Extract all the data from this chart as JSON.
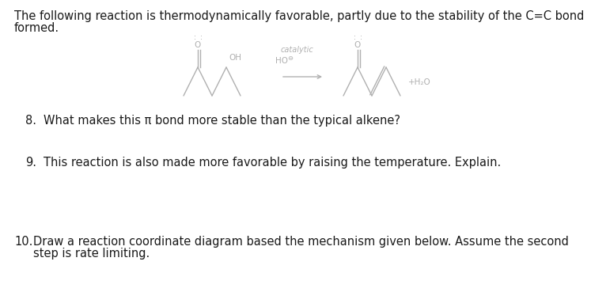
{
  "background_color": "#ffffff",
  "intro_line1": "The following reaction is thermodynamically favorable, partly due to the stability of the C=C bond",
  "intro_line2": "formed.",
  "catalytic_label": "catalytic",
  "ho_label": "HO",
  "oh_label": "OH",
  "plus_h2o": "+H₂O",
  "q8_number": "8.",
  "q8_text": "What makes this π bond more stable than the typical alkene?",
  "q9_number": "9.",
  "q9_text": "This reaction is also made more favorable by raising the temperature. Explain.",
  "q10_number": "10.",
  "q10_line1": "Draw a reaction coordinate diagram based the mechanism given below. Assume the second",
  "q10_line2": "step is rate limiting.",
  "text_color": "#1a1a1a",
  "gray_color": "#b0b0b0",
  "font_size_body": 10.5,
  "font_size_mol": 7.5,
  "font_size_label": 7
}
